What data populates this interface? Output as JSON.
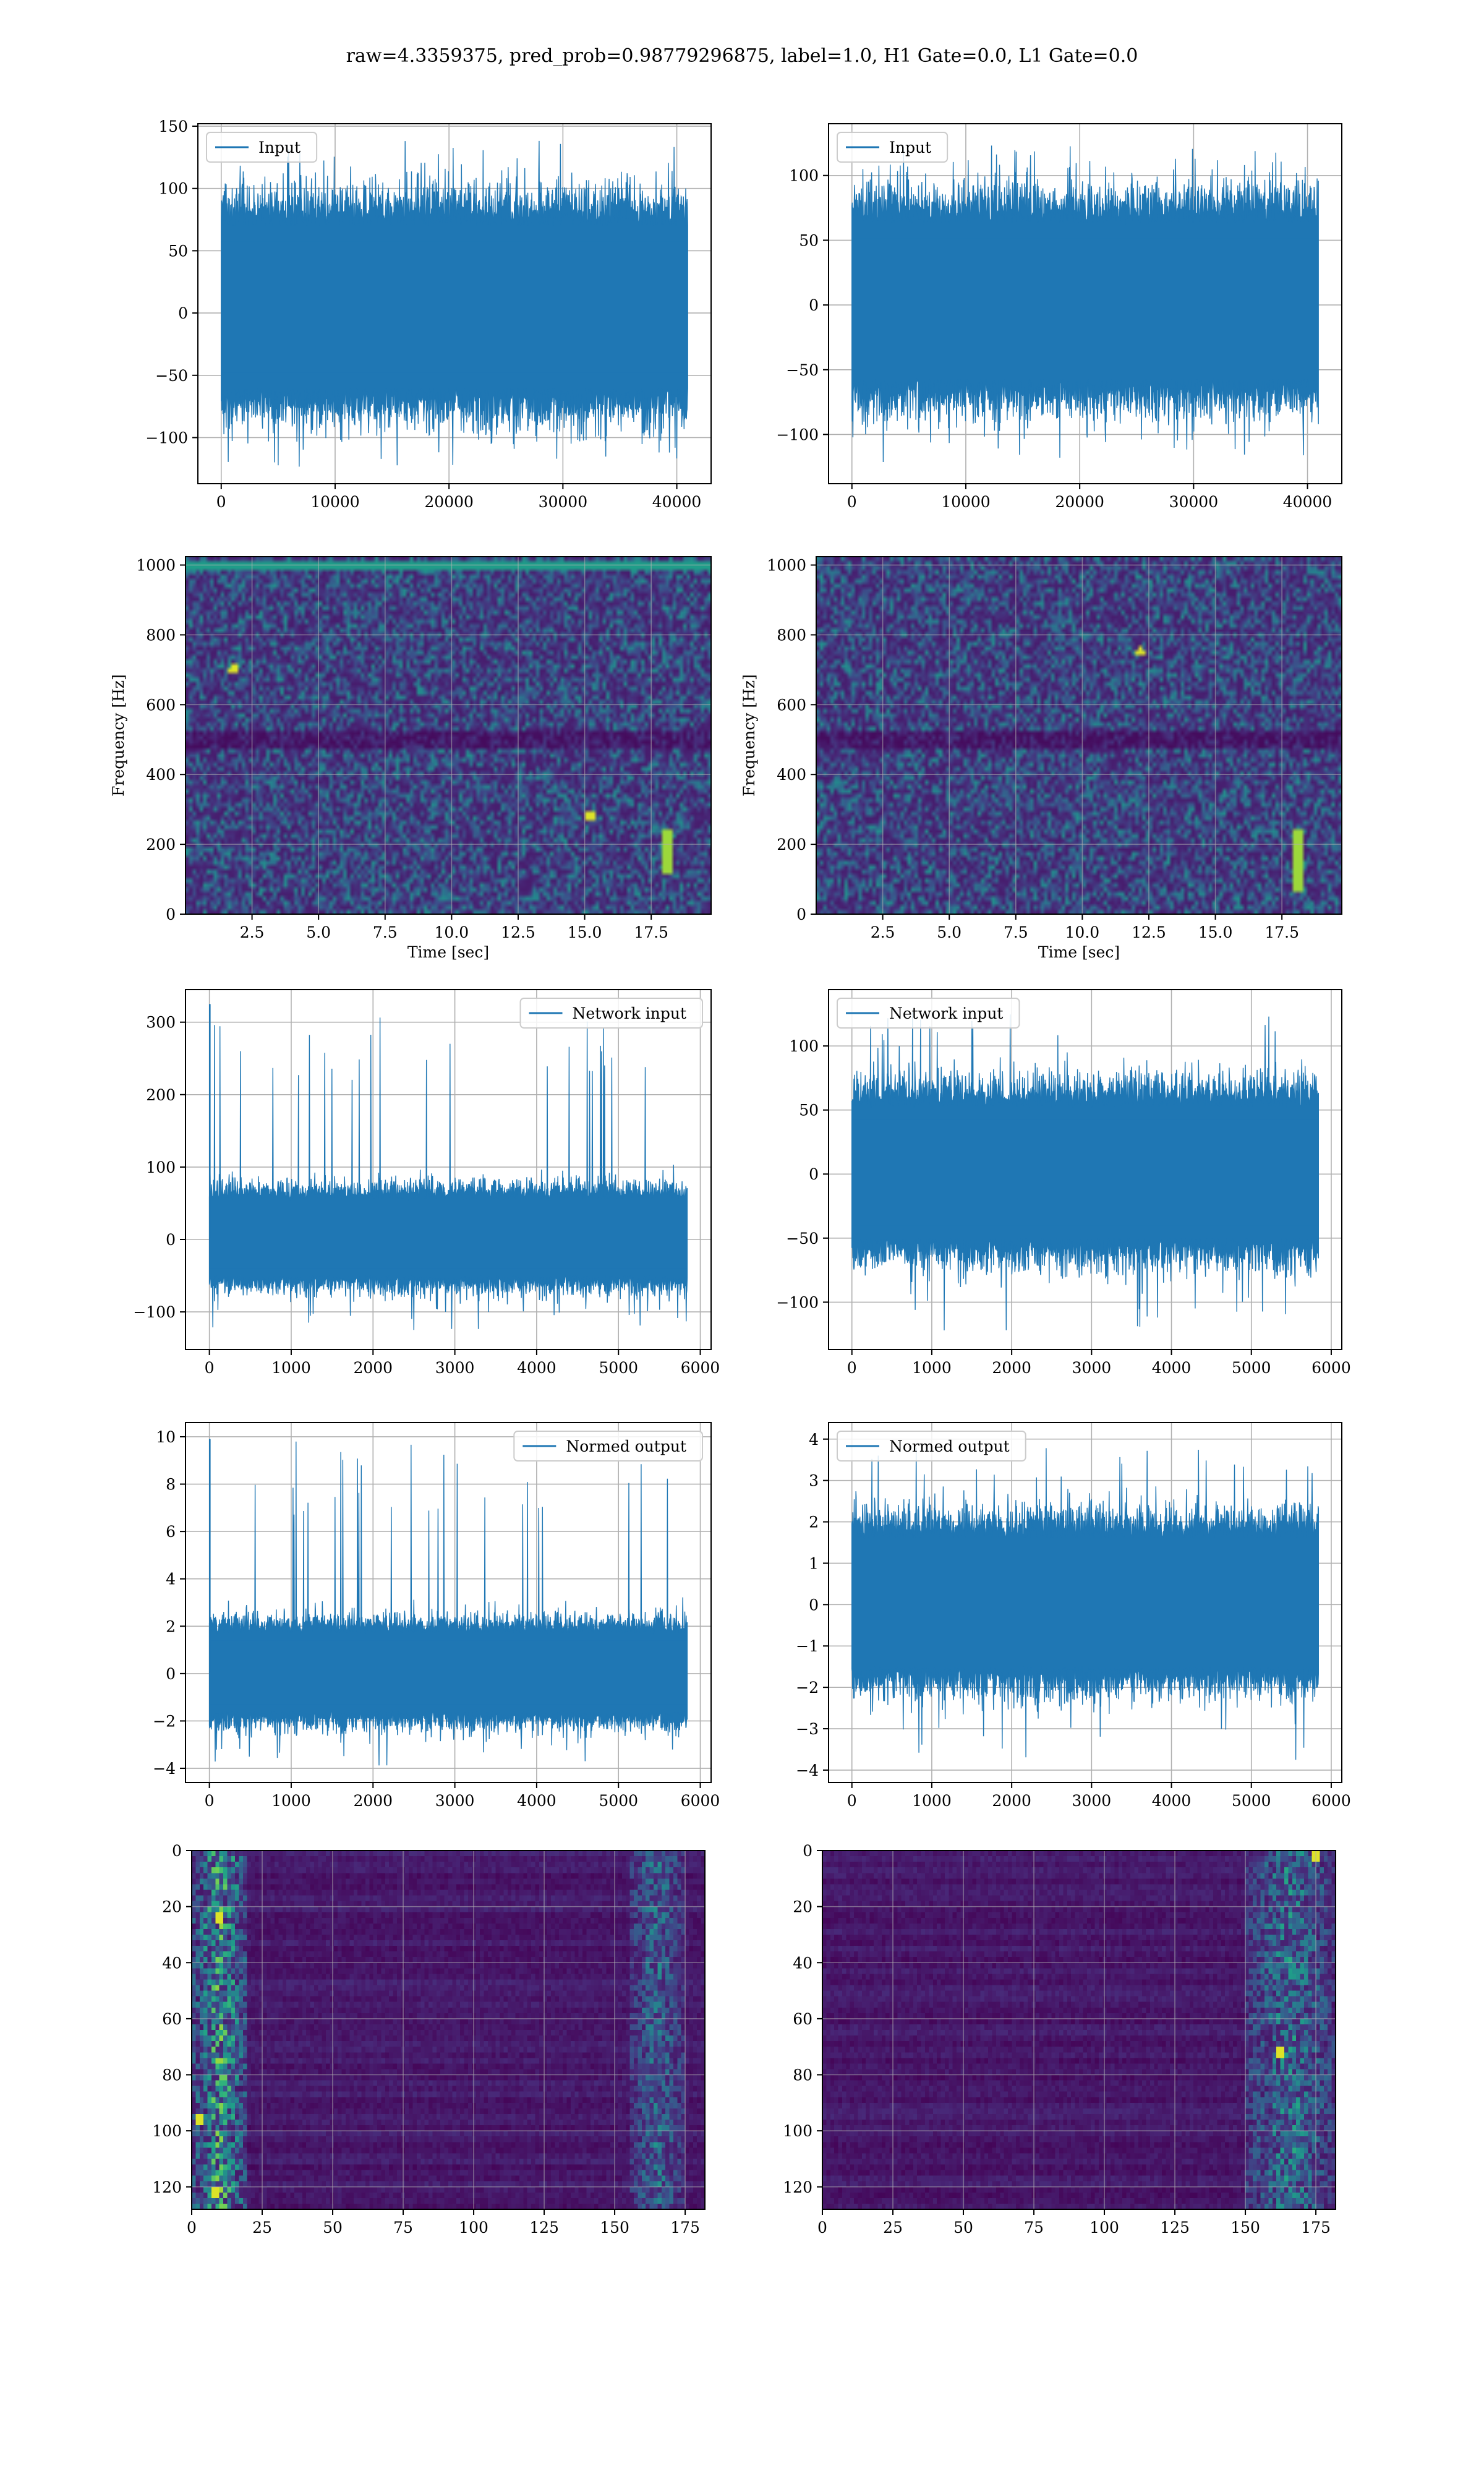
{
  "figure": {
    "suptitle": "raw=4.3359375, pred_prob=0.98779296875, label=1.0, H1 Gate=0.0, L1 Gate=0.0",
    "line_color": "#1f77b4",
    "grid_color": "#b0b0b0"
  },
  "chart_data": [
    {
      "type": "line",
      "row": 0,
      "col": 0,
      "series": [
        {
          "name": "Input",
          "x_range": [
            0,
            40960
          ],
          "samples": 40960,
          "values_summary": {
            "band_min": -60,
            "band_max": 70,
            "min": -125,
            "max": 140
          }
        }
      ],
      "title": "",
      "xlabel": "",
      "ylabel": "",
      "xlim": [
        -2050,
        43010
      ],
      "ylim": [
        -137,
        152
      ],
      "xticks": [
        0,
        10000,
        20000,
        30000,
        40000
      ],
      "xtick_labels": [
        "0",
        "10000",
        "20000",
        "30000",
        "40000"
      ],
      "yticks": [
        -100,
        -50,
        0,
        50,
        100,
        150
      ],
      "ytick_labels": [
        "−100",
        "−50",
        "0",
        "50",
        "100",
        "150"
      ],
      "grid": true,
      "legend": "upper left"
    },
    {
      "type": "line",
      "row": 0,
      "col": 1,
      "series": [
        {
          "name": "Input",
          "x_range": [
            0,
            40960
          ],
          "samples": 40960,
          "values_summary": {
            "band_min": -57,
            "band_max": 63,
            "min": -123,
            "max": 128
          }
        }
      ],
      "title": "",
      "xlabel": "",
      "ylabel": "",
      "xlim": [
        -2050,
        43010
      ],
      "ylim": [
        -138,
        140
      ],
      "xticks": [
        0,
        10000,
        20000,
        30000,
        40000
      ],
      "xtick_labels": [
        "0",
        "10000",
        "20000",
        "30000",
        "40000"
      ],
      "yticks": [
        -100,
        -50,
        0,
        50,
        100
      ],
      "ytick_labels": [
        "−100",
        "−50",
        "0",
        "50",
        "100"
      ],
      "grid": true,
      "legend": "upper left"
    },
    {
      "type": "heatmap",
      "row": 1,
      "col": 0,
      "title": "",
      "xlabel": "Time [sec]",
      "ylabel": "Frequency [Hz]",
      "xlim": [
        0,
        19.75
      ],
      "ylim": [
        0,
        1024
      ],
      "xticks": [
        2.5,
        5,
        7.5,
        10,
        12.5,
        15,
        17.5
      ],
      "xtick_labels": [
        "2.5",
        "5.0",
        "7.5",
        "10.0",
        "12.5",
        "15.0",
        "17.5"
      ],
      "yticks": [
        0,
        200,
        400,
        600,
        800,
        1000
      ],
      "ytick_labels": [
        "0",
        "200",
        "400",
        "600",
        "800",
        "1000"
      ],
      "colormap": "viridis",
      "grid": true,
      "features": [
        {
          "kind": "bright-streak",
          "x": 18.1,
          "y_range": [
            120,
            240
          ]
        },
        {
          "kind": "dark-band",
          "y": 500
        },
        {
          "kind": "bright-line",
          "y": 1000
        },
        {
          "kind": "bright-spot",
          "x": 1.8,
          "y": 700
        },
        {
          "kind": "bright-spot",
          "x": 15.2,
          "y": 280
        }
      ]
    },
    {
      "type": "heatmap",
      "row": 1,
      "col": 1,
      "title": "",
      "xlabel": "Time [sec]",
      "ylabel": "Frequency [Hz]",
      "xlim": [
        0,
        19.75
      ],
      "ylim": [
        0,
        1024
      ],
      "xticks": [
        2.5,
        5,
        7.5,
        10,
        12.5,
        15,
        17.5
      ],
      "xtick_labels": [
        "2.5",
        "5.0",
        "7.5",
        "10.0",
        "12.5",
        "15.0",
        "17.5"
      ],
      "yticks": [
        0,
        200,
        400,
        600,
        800,
        1000
      ],
      "ytick_labels": [
        "0",
        "200",
        "400",
        "600",
        "800",
        "1000"
      ],
      "colormap": "viridis",
      "grid": true,
      "features": [
        {
          "kind": "bright-streak",
          "x": 18.1,
          "y_range": [
            60,
            240
          ]
        },
        {
          "kind": "dark-band",
          "y": 500
        },
        {
          "kind": "bright-spot",
          "x": 12.2,
          "y": 750
        }
      ]
    },
    {
      "type": "line",
      "row": 2,
      "col": 0,
      "series": [
        {
          "name": "Network input",
          "x_range": [
            0,
            5840
          ],
          "samples": 5840,
          "values_summary": {
            "band_min": -50,
            "band_max": 55,
            "min": -125,
            "max": 325,
            "spike_x": 5,
            "spike_y": 325
          }
        }
      ],
      "title": "",
      "xlabel": "",
      "ylabel": "",
      "xlim": [
        -292,
        6132
      ],
      "ylim": [
        -152,
        345
      ],
      "xticks": [
        0,
        1000,
        2000,
        3000,
        4000,
        5000,
        6000
      ],
      "xtick_labels": [
        "0",
        "1000",
        "2000",
        "3000",
        "4000",
        "5000",
        "6000"
      ],
      "yticks": [
        -100,
        0,
        100,
        200,
        300
      ],
      "ytick_labels": [
        "−100",
        "0",
        "100",
        "200",
        "300"
      ],
      "grid": true,
      "legend": "upper right"
    },
    {
      "type": "line",
      "row": 2,
      "col": 1,
      "series": [
        {
          "name": "Network input",
          "x_range": [
            0,
            5840
          ],
          "samples": 5840,
          "values_summary": {
            "band_min": -50,
            "band_max": 52,
            "min": -122,
            "max": 128
          }
        }
      ],
      "title": "",
      "xlabel": "",
      "ylabel": "",
      "xlim": [
        -292,
        6132
      ],
      "ylim": [
        -137,
        144
      ],
      "xticks": [
        0,
        1000,
        2000,
        3000,
        4000,
        5000,
        6000
      ],
      "xtick_labels": [
        "0",
        "1000",
        "2000",
        "3000",
        "4000",
        "5000",
        "6000"
      ],
      "yticks": [
        -100,
        -50,
        0,
        50,
        100
      ],
      "ytick_labels": [
        "−100",
        "−50",
        "0",
        "50",
        "100"
      ],
      "grid": true,
      "legend": "upper left"
    },
    {
      "type": "line",
      "row": 3,
      "col": 0,
      "series": [
        {
          "name": "Normed output",
          "x_range": [
            0,
            5840
          ],
          "samples": 5840,
          "values_summary": {
            "band_min": -1.6,
            "band_max": 1.7,
            "min": -3.9,
            "max": 9.9,
            "spike_x": 5,
            "spike_y": 9.9
          }
        }
      ],
      "title": "",
      "xlabel": "",
      "ylabel": "",
      "xlim": [
        -292,
        6132
      ],
      "ylim": [
        -4.6,
        10.6
      ],
      "xticks": [
        0,
        1000,
        2000,
        3000,
        4000,
        5000,
        6000
      ],
      "xtick_labels": [
        "0",
        "1000",
        "2000",
        "3000",
        "4000",
        "5000",
        "6000"
      ],
      "yticks": [
        -4,
        -2,
        0,
        2,
        4,
        6,
        8,
        10
      ],
      "ytick_labels": [
        "−4",
        "−2",
        "0",
        "2",
        "4",
        "6",
        "8",
        "10"
      ],
      "grid": true,
      "legend": "upper right"
    },
    {
      "type": "line",
      "row": 3,
      "col": 1,
      "series": [
        {
          "name": "Normed output",
          "x_range": [
            0,
            5840
          ],
          "samples": 5840,
          "values_summary": {
            "band_min": -1.5,
            "band_max": 1.6,
            "min": -3.8,
            "max": 4.0
          }
        }
      ],
      "title": "",
      "xlabel": "",
      "ylabel": "",
      "xlim": [
        -292,
        6132
      ],
      "ylim": [
        -4.3,
        4.4
      ],
      "xticks": [
        0,
        1000,
        2000,
        3000,
        4000,
        5000,
        6000
      ],
      "xtick_labels": [
        "0",
        "1000",
        "2000",
        "3000",
        "4000",
        "5000",
        "6000"
      ],
      "yticks": [
        -4,
        -3,
        -2,
        -1,
        0,
        1,
        2,
        3,
        4
      ],
      "ytick_labels": [
        "−4",
        "−3",
        "−2",
        "−1",
        "0",
        "1",
        "2",
        "3",
        "4"
      ],
      "grid": true,
      "legend": "upper left"
    },
    {
      "type": "heatmap",
      "row": 4,
      "col": 0,
      "title": "",
      "xlabel": "",
      "ylabel": "",
      "xlim": [
        0,
        182
      ],
      "ylim": [
        128,
        0
      ],
      "xticks": [
        0,
        25,
        50,
        75,
        100,
        125,
        150,
        175
      ],
      "xtick_labels": [
        "0",
        "25",
        "50",
        "75",
        "100",
        "125",
        "150",
        "175"
      ],
      "yticks": [
        0,
        20,
        40,
        60,
        80,
        100,
        120
      ],
      "ytick_labels": [
        "0",
        "20",
        "40",
        "60",
        "80",
        "100",
        "120"
      ],
      "colormap": "viridis",
      "grid": true,
      "features": [
        {
          "kind": "bright-region",
          "x_range": [
            0,
            20
          ],
          "strength": 0.8
        },
        {
          "kind": "bright-region",
          "x_range": [
            155,
            175
          ],
          "strength": 0.45
        },
        {
          "kind": "bright-spot",
          "x": 3,
          "y": 96
        },
        {
          "kind": "bright-spot",
          "x": 8,
          "y": 122
        },
        {
          "kind": "bright-spot",
          "x": 10,
          "y": 24
        }
      ]
    },
    {
      "type": "heatmap",
      "row": 4,
      "col": 1,
      "title": "",
      "xlabel": "",
      "ylabel": "",
      "xlim": [
        0,
        182
      ],
      "ylim": [
        128,
        0
      ],
      "xticks": [
        0,
        25,
        50,
        75,
        100,
        125,
        150,
        175
      ],
      "xtick_labels": [
        "0",
        "25",
        "50",
        "75",
        "100",
        "125",
        "150",
        "175"
      ],
      "yticks": [
        0,
        20,
        40,
        60,
        80,
        100,
        120
      ],
      "ytick_labels": [
        "0",
        "20",
        "40",
        "60",
        "80",
        "100",
        "120"
      ],
      "colormap": "viridis",
      "grid": true,
      "features": [
        {
          "kind": "bright-region",
          "x_range": [
            150,
            182
          ],
          "strength": 0.55
        },
        {
          "kind": "bright-spot",
          "x": 162,
          "y": 72
        },
        {
          "kind": "bright-spot",
          "x": 175,
          "y": 2
        }
      ]
    }
  ]
}
